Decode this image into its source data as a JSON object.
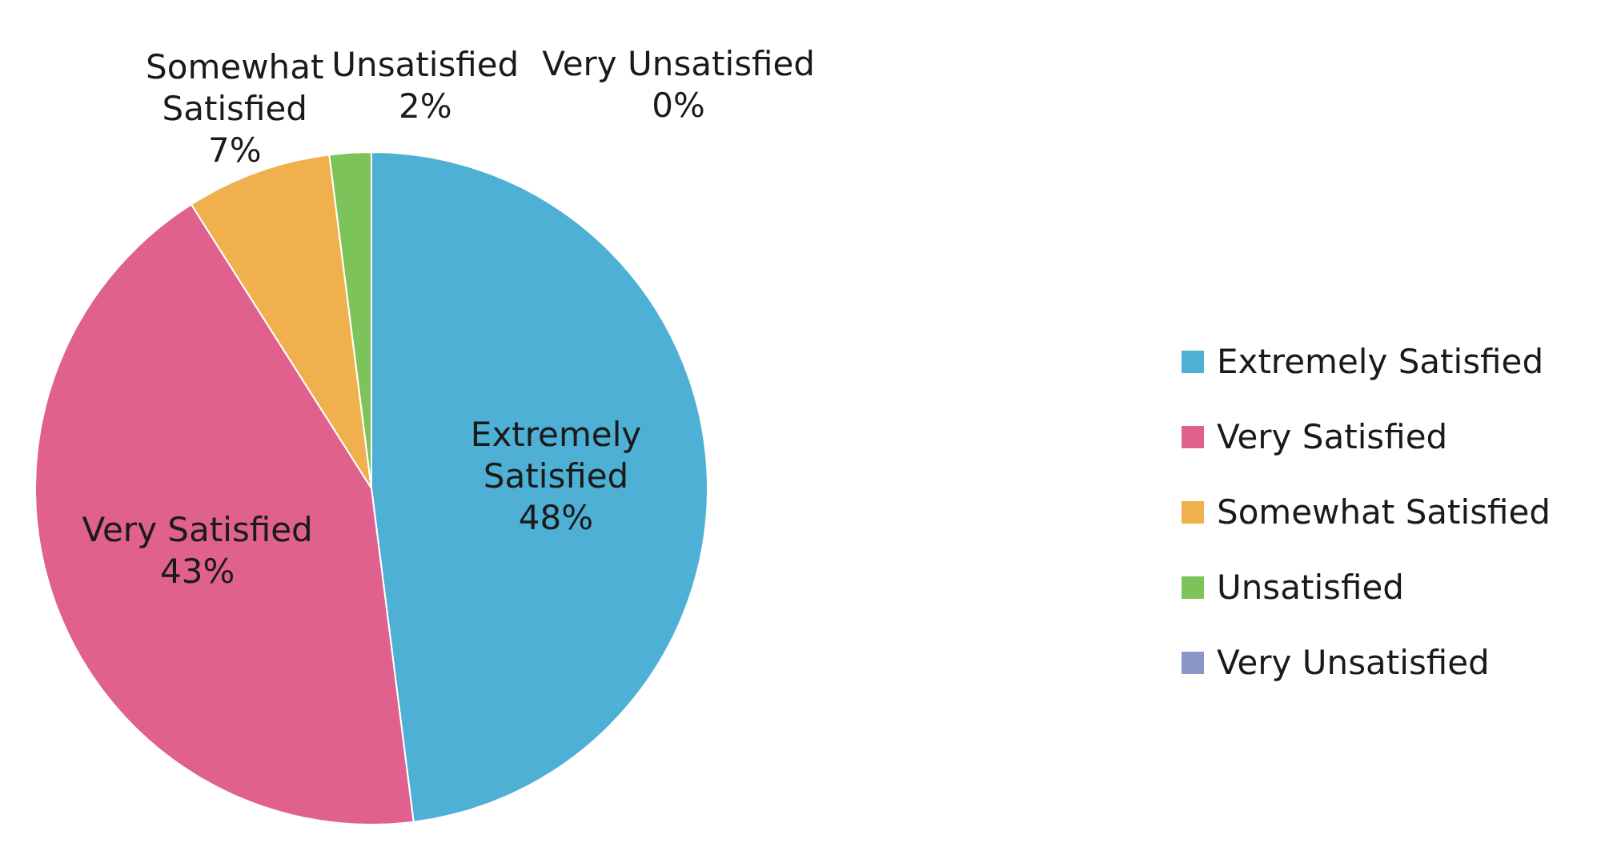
{
  "chart_data": {
    "type": "pie",
    "categories": [
      "Extremely Satisfied",
      "Very Satisfied",
      "Somewhat Satisfied",
      "Unsatisfied",
      "Very Unsatisfied"
    ],
    "values": [
      48,
      43,
      7,
      2,
      0
    ],
    "colors": [
      "#4fb0d6",
      "#e0608e",
      "#f0b04e",
      "#7cc35a",
      "#8a95c8"
    ],
    "value_labels": [
      "48%",
      "43%",
      "7%",
      "2%",
      "0%"
    ],
    "legend": "right"
  }
}
